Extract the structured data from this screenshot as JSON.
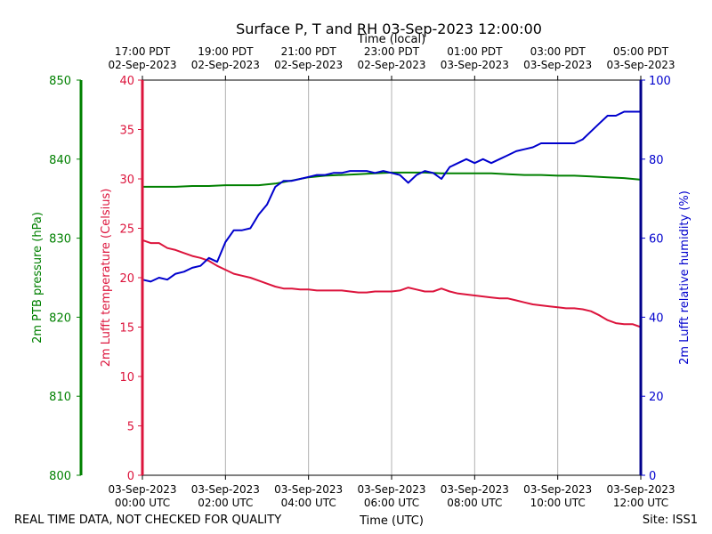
{
  "chart_data": {
    "type": "line",
    "title": "Surface P, T and RH 03-Sep-2023 12:00:00",
    "xlabel_top": "Time (local)",
    "xlabel_bottom": "Time (UTC)",
    "footer_left": "REAL TIME DATA, NOT CHECKED FOR QUALITY",
    "footer_right": "Site: ISS1",
    "x_range_hours_utc": [
      0,
      12
    ],
    "x_ticks_bottom": [
      {
        "h": 0,
        "l1": "03-Sep-2023",
        "l2": "00:00 UTC"
      },
      {
        "h": 2,
        "l1": "03-Sep-2023",
        "l2": "02:00 UTC"
      },
      {
        "h": 4,
        "l1": "03-Sep-2023",
        "l2": "04:00 UTC"
      },
      {
        "h": 6,
        "l1": "03-Sep-2023",
        "l2": "06:00 UTC"
      },
      {
        "h": 8,
        "l1": "03-Sep-2023",
        "l2": "08:00 UTC"
      },
      {
        "h": 10,
        "l1": "03-Sep-2023",
        "l2": "10:00 UTC"
      },
      {
        "h": 12,
        "l1": "03-Sep-2023",
        "l2": "12:00 UTC"
      }
    ],
    "x_ticks_top": [
      {
        "h": 0,
        "l1": "17:00 PDT",
        "l2": "02-Sep-2023"
      },
      {
        "h": 2,
        "l1": "19:00 PDT",
        "l2": "02-Sep-2023"
      },
      {
        "h": 4,
        "l1": "21:00 PDT",
        "l2": "02-Sep-2023"
      },
      {
        "h": 6,
        "l1": "23:00 PDT",
        "l2": "02-Sep-2023"
      },
      {
        "h": 8,
        "l1": "01:00 PDT",
        "l2": "03-Sep-2023"
      },
      {
        "h": 10,
        "l1": "03:00 PDT",
        "l2": "03-Sep-2023"
      },
      {
        "h": 12,
        "l1": "05:00 PDT",
        "l2": "03-Sep-2023"
      }
    ],
    "axes": {
      "temperature": {
        "label": "2m Lufft temperature (Celsius)",
        "range": [
          0,
          40
        ],
        "ticks": [
          0,
          5,
          10,
          15,
          20,
          25,
          30,
          35,
          40
        ],
        "color": "#dc143c"
      },
      "pressure": {
        "label": "2m PTB pressure (hPa)",
        "range": [
          800,
          850
        ],
        "ticks": [
          800,
          810,
          820,
          830,
          840,
          850
        ],
        "color": "#008000"
      },
      "humidity": {
        "label": "2m Lufft relative humidity (%)",
        "range": [
          0,
          100
        ],
        "ticks": [
          0,
          20,
          40,
          60,
          80,
          100
        ],
        "color": "#0000cd"
      }
    },
    "series": [
      {
        "key": "temperature",
        "color": "#dc143c",
        "x": [
          0,
          0.2,
          0.4,
          0.6,
          0.8,
          1.0,
          1.2,
          1.4,
          1.6,
          1.8,
          2.0,
          2.2,
          2.4,
          2.6,
          2.8,
          3.0,
          3.2,
          3.4,
          3.6,
          3.8,
          4.0,
          4.2,
          4.4,
          4.6,
          4.8,
          5.0,
          5.2,
          5.4,
          5.6,
          5.8,
          6.0,
          6.2,
          6.4,
          6.6,
          6.8,
          7.0,
          7.2,
          7.4,
          7.6,
          7.8,
          8.0,
          8.2,
          8.4,
          8.6,
          8.8,
          9.0,
          9.2,
          9.4,
          9.6,
          9.8,
          10.0,
          10.2,
          10.4,
          10.6,
          10.8,
          11.0,
          11.2,
          11.4,
          11.6,
          11.8,
          12.0
        ],
        "values": [
          23.8,
          23.5,
          23.5,
          23.0,
          22.8,
          22.5,
          22.2,
          22.0,
          21.7,
          21.2,
          20.8,
          20.4,
          20.2,
          20.0,
          19.7,
          19.4,
          19.1,
          18.9,
          18.9,
          18.8,
          18.8,
          18.7,
          18.7,
          18.7,
          18.7,
          18.6,
          18.5,
          18.5,
          18.6,
          18.6,
          18.6,
          18.7,
          19.0,
          18.8,
          18.6,
          18.6,
          18.9,
          18.6,
          18.4,
          18.3,
          18.2,
          18.1,
          18.0,
          17.9,
          17.9,
          17.7,
          17.5,
          17.3,
          17.2,
          17.1,
          17.0,
          16.9,
          16.9,
          16.8,
          16.6,
          16.2,
          15.7,
          15.4,
          15.3,
          15.3,
          15.0
        ]
      },
      {
        "key": "pressure",
        "color": "#008000",
        "x": [
          0,
          0.4,
          0.8,
          1.2,
          1.6,
          2.0,
          2.4,
          2.8,
          3.2,
          3.6,
          4.0,
          4.4,
          4.8,
          5.2,
          5.6,
          6.0,
          6.4,
          6.8,
          7.2,
          7.6,
          8.0,
          8.4,
          8.8,
          9.2,
          9.6,
          10.0,
          10.4,
          10.8,
          11.2,
          11.6,
          12.0
        ],
        "values": [
          836.5,
          836.5,
          836.5,
          836.6,
          836.6,
          836.7,
          836.7,
          836.7,
          836.9,
          837.3,
          837.7,
          837.9,
          838.0,
          838.1,
          838.2,
          838.3,
          838.3,
          838.3,
          838.2,
          838.2,
          838.2,
          838.2,
          838.1,
          838.0,
          838.0,
          837.9,
          837.9,
          837.8,
          837.7,
          837.6,
          837.4
        ]
      },
      {
        "key": "humidity",
        "color": "#0000cd",
        "x": [
          0,
          0.2,
          0.4,
          0.6,
          0.8,
          1.0,
          1.2,
          1.4,
          1.6,
          1.8,
          2.0,
          2.2,
          2.4,
          2.6,
          2.8,
          3.0,
          3.2,
          3.4,
          3.6,
          3.8,
          4.0,
          4.2,
          4.4,
          4.6,
          4.8,
          5.0,
          5.2,
          5.4,
          5.6,
          5.8,
          6.0,
          6.2,
          6.4,
          6.6,
          6.8,
          7.0,
          7.2,
          7.4,
          7.6,
          7.8,
          8.0,
          8.2,
          8.4,
          8.6,
          8.8,
          9.0,
          9.2,
          9.4,
          9.6,
          9.8,
          10.0,
          10.2,
          10.4,
          10.6,
          10.8,
          11.0,
          11.2,
          11.4,
          11.6,
          11.8,
          12.0
        ],
        "values": [
          49.5,
          49.0,
          50.0,
          49.5,
          51.0,
          51.5,
          52.5,
          53.0,
          55.0,
          54.0,
          59.0,
          62.0,
          62.0,
          62.5,
          66.0,
          68.5,
          73.0,
          74.5,
          74.5,
          75.0,
          75.5,
          76.0,
          76.0,
          76.5,
          76.5,
          77.0,
          77.0,
          77.0,
          76.5,
          77.0,
          76.5,
          76.0,
          74.0,
          76.0,
          77.0,
          76.5,
          75.0,
          78.0,
          79.0,
          80.0,
          79.0,
          80.0,
          79.0,
          80.0,
          81.0,
          82.0,
          82.5,
          83.0,
          84.0,
          84.0,
          84.0,
          84.0,
          84.0,
          85.0,
          87.0,
          89.0,
          91.0,
          91.0,
          92.0,
          92.0,
          92.0
        ]
      }
    ],
    "grid": "vertical"
  }
}
